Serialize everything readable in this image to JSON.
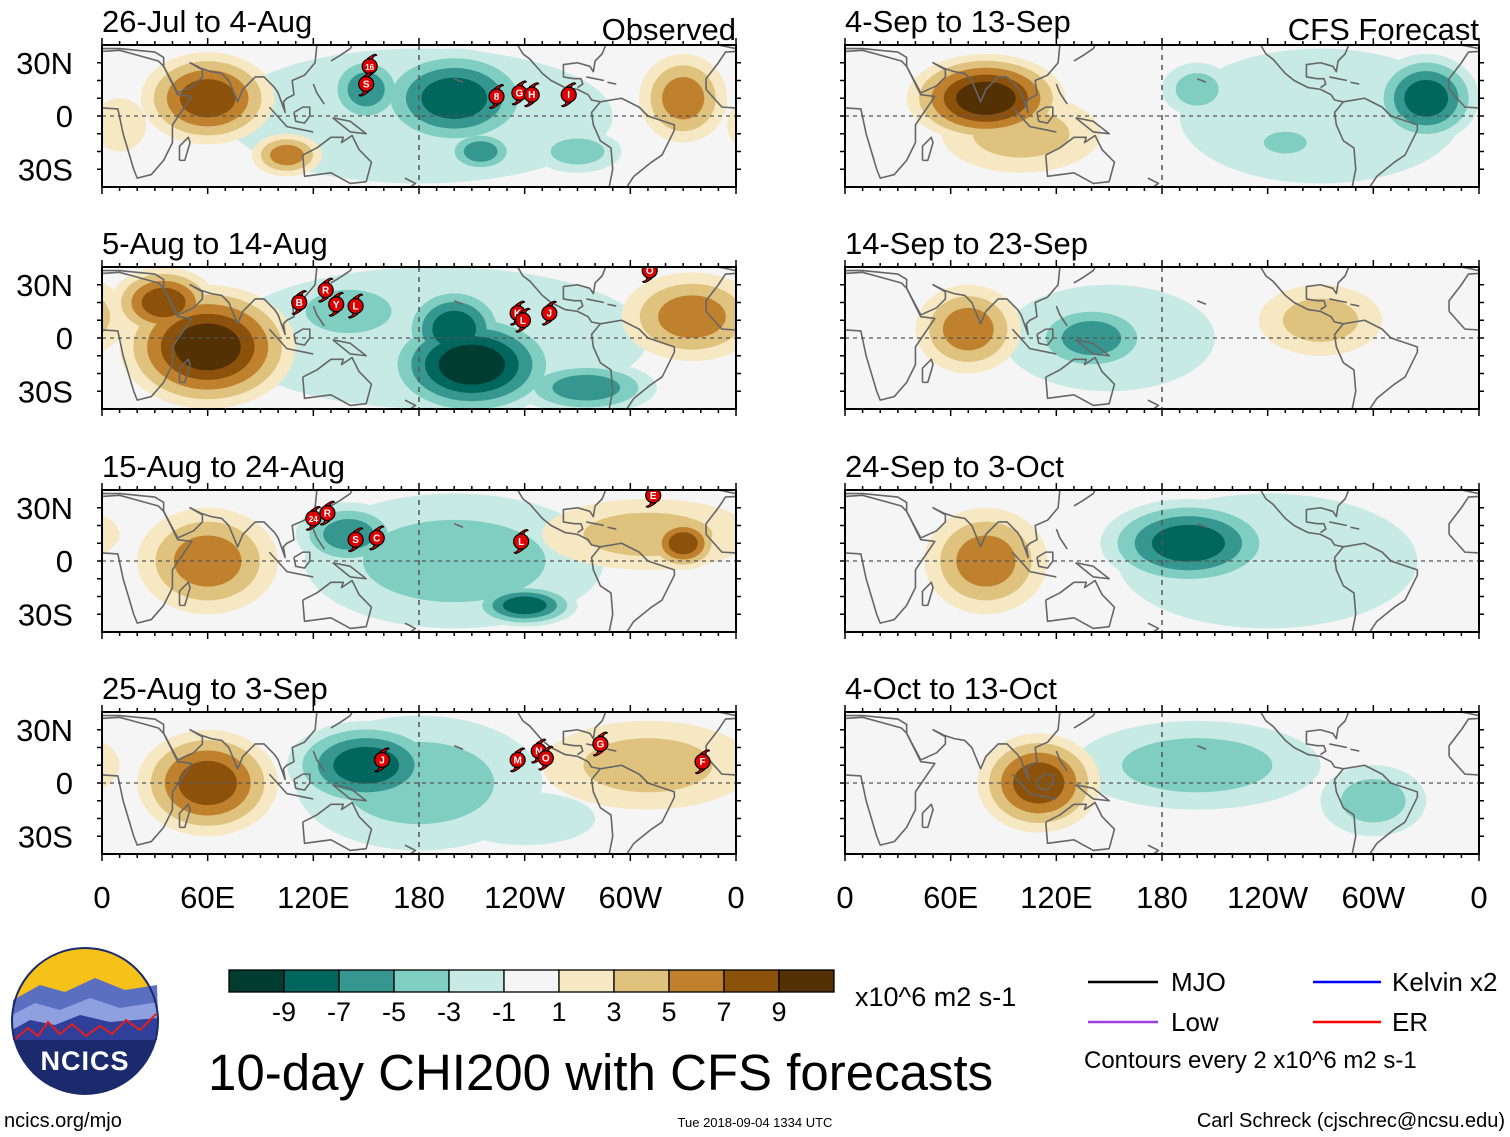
{
  "header": {
    "observed_label": "Observed",
    "forecast_label": "CFS Forecast"
  },
  "axes": {
    "lat_labels": [
      "30N",
      "0",
      "30S"
    ],
    "lon_labels": [
      "0",
      "60E",
      "120E",
      "180",
      "120W",
      "60W",
      "0"
    ]
  },
  "title": "10-day CHI200 with CFS forecasts",
  "colorbar": {
    "labels": [
      "-9",
      "-7",
      "-5",
      "-3",
      "-1",
      "1",
      "3",
      "5",
      "7",
      "9"
    ],
    "colors": [
      "#003c30",
      "#01665e",
      "#35978f",
      "#80cdc1",
      "#c7eae5",
      "#f5f5f5",
      "#f6e8c3",
      "#dfc27d",
      "#bf812d",
      "#8c510a",
      "#543005"
    ],
    "units": "x10^6 m2 s-1"
  },
  "legend": {
    "items": [
      {
        "label": "MJO",
        "color": "#000000"
      },
      {
        "label": "Kelvin x2",
        "color": "#0000ff"
      },
      {
        "label": "Low",
        "color": "#a040e0"
      },
      {
        "label": "ER",
        "color": "#ff0000"
      }
    ],
    "contour_note": "Contours every 2 x10^6 m2 s-1"
  },
  "logo": {
    "text": "NCICS"
  },
  "footer": {
    "url": "ncics.org/mjo",
    "timestamp": "Tue 2018-09-04 1334 UTC",
    "credit": "Carl Schreck (cjschrec@ncsu.edu)"
  },
  "chart_data": {
    "type": "heatmap",
    "variable": "10-day CHI200 anomaly",
    "units": "x10^6 m2 s-1",
    "lon_range": [
      0,
      360
    ],
    "lat_range": [
      -40,
      40
    ],
    "panels": [
      {
        "title": "26-Jul to 4-Aug",
        "kind": "observed",
        "features": [
          {
            "lon": 180,
            "lat": 0,
            "rx": 110,
            "ry": 38,
            "v": -2
          },
          {
            "lon": 200,
            "lat": 10,
            "rx": 45,
            "ry": 28,
            "v": -7
          },
          {
            "lon": 215,
            "lat": -20,
            "rx": 20,
            "ry": 12,
            "v": -6
          },
          {
            "lon": 150,
            "lat": 15,
            "rx": 22,
            "ry": 20,
            "v": -5
          },
          {
            "lon": 270,
            "lat": -20,
            "rx": 25,
            "ry": 12,
            "v": -4
          },
          {
            "lon": 60,
            "lat": 10,
            "rx": 38,
            "ry": 26,
            "v": 8
          },
          {
            "lon": 105,
            "lat": -22,
            "rx": 20,
            "ry": 12,
            "v": 6
          },
          {
            "lon": 330,
            "lat": 10,
            "rx": 25,
            "ry": 25,
            "v": 6
          },
          {
            "lon": 10,
            "lat": -5,
            "rx": 15,
            "ry": 15,
            "v": 2
          }
        ],
        "storms": [
          {
            "label": "16",
            "lon": 152,
            "lat": 28
          },
          {
            "label": "S",
            "lon": 150,
            "lat": 18
          },
          {
            "label": "8",
            "lon": 224,
            "lat": 11
          },
          {
            "label": "G",
            "lon": 237,
            "lat": 13
          },
          {
            "label": "H",
            "lon": 244,
            "lat": 12
          },
          {
            "label": "I",
            "lon": 265,
            "lat": 12
          }
        ]
      },
      {
        "title": "5-Aug to 14-Aug",
        "kind": "observed",
        "features": [
          {
            "lon": 190,
            "lat": 0,
            "rx": 120,
            "ry": 40,
            "v": -2
          },
          {
            "lon": 210,
            "lat": -15,
            "rx": 50,
            "ry": 30,
            "v": -10
          },
          {
            "lon": 200,
            "lat": 5,
            "rx": 30,
            "ry": 25,
            "v": -7
          },
          {
            "lon": 140,
            "lat": 15,
            "rx": 40,
            "ry": 20,
            "v": -3
          },
          {
            "lon": 275,
            "lat": -28,
            "rx": 40,
            "ry": 15,
            "v": -6
          },
          {
            "lon": 60,
            "lat": -5,
            "rx": 50,
            "ry": 35,
            "v": 10
          },
          {
            "lon": 35,
            "lat": 20,
            "rx": 30,
            "ry": 20,
            "v": 7
          },
          {
            "lon": 335,
            "lat": 12,
            "rx": 40,
            "ry": 25,
            "v": 5
          }
        ],
        "storms": [
          {
            "label": "B",
            "lon": 112,
            "lat": 20
          },
          {
            "label": "R",
            "lon": 127,
            "lat": 27
          },
          {
            "label": "Y",
            "lon": 133,
            "lat": 19
          },
          {
            "label": "L",
            "lon": 144,
            "lat": 18
          },
          {
            "label": "K",
            "lon": 236,
            "lat": 14
          },
          {
            "label": "L",
            "lon": 239,
            "lat": 10
          },
          {
            "label": "J",
            "lon": 254,
            "lat": 14
          },
          {
            "label": "O",
            "lon": 311,
            "lat": 38
          }
        ]
      },
      {
        "title": "15-Aug to 24-Aug",
        "kind": "observed",
        "features": [
          {
            "lon": 200,
            "lat": 0,
            "rx": 85,
            "ry": 38,
            "v": -3
          },
          {
            "lon": 140,
            "lat": 15,
            "rx": 30,
            "ry": 18,
            "v": -6
          },
          {
            "lon": 240,
            "lat": -25,
            "rx": 30,
            "ry": 12,
            "v": -7
          },
          {
            "lon": 60,
            "lat": 0,
            "rx": 40,
            "ry": 30,
            "v": 6
          },
          {
            "lon": 310,
            "lat": 15,
            "rx": 60,
            "ry": 20,
            "v": 4
          },
          {
            "lon": 330,
            "lat": 10,
            "rx": 20,
            "ry": 15,
            "v": 7
          }
        ],
        "storms": [
          {
            "label": "24",
            "lon": 120,
            "lat": 24
          },
          {
            "label": "R",
            "lon": 128,
            "lat": 27
          },
          {
            "label": "S",
            "lon": 144,
            "lat": 12
          },
          {
            "label": "C",
            "lon": 156,
            "lat": 13
          },
          {
            "label": "L",
            "lon": 238,
            "lat": 11
          },
          {
            "label": "E",
            "lon": 313,
            "lat": 37
          }
        ]
      },
      {
        "title": "25-Aug to 3-Sep",
        "kind": "observed",
        "features": [
          {
            "lon": 180,
            "lat": 0,
            "rx": 70,
            "ry": 38,
            "v": -3
          },
          {
            "lon": 150,
            "lat": 10,
            "rx": 45,
            "ry": 25,
            "v": -7
          },
          {
            "lon": 240,
            "lat": -20,
            "rx": 40,
            "ry": 15,
            "v": -2
          },
          {
            "lon": 60,
            "lat": 0,
            "rx": 40,
            "ry": 30,
            "v": 8
          },
          {
            "lon": 310,
            "lat": 10,
            "rx": 60,
            "ry": 25,
            "v": 4
          }
        ],
        "storms": [
          {
            "label": "J",
            "lon": 159,
            "lat": 13
          },
          {
            "label": "M",
            "lon": 236,
            "lat": 13
          },
          {
            "label": "N",
            "lon": 248,
            "lat": 18
          },
          {
            "label": "O",
            "lon": 252,
            "lat": 14
          },
          {
            "label": "G",
            "lon": 283,
            "lat": 22
          },
          {
            "label": "F",
            "lon": 341,
            "lat": 12
          }
        ]
      },
      {
        "title": "4-Sep to 13-Sep",
        "kind": "forecast",
        "features": [
          {
            "lon": 270,
            "lat": 0,
            "rx": 80,
            "ry": 38,
            "v": -2
          },
          {
            "lon": 330,
            "lat": 10,
            "rx": 30,
            "ry": 25,
            "v": -7
          },
          {
            "lon": 200,
            "lat": 15,
            "rx": 20,
            "ry": 15,
            "v": -3
          },
          {
            "lon": 250,
            "lat": -15,
            "rx": 20,
            "ry": 10,
            "v": -3
          },
          {
            "lon": 100,
            "lat": -10,
            "rx": 45,
            "ry": 22,
            "v": 3
          },
          {
            "lon": 80,
            "lat": 10,
            "rx": 45,
            "ry": 25,
            "v": 10
          }
        ],
        "storms": []
      },
      {
        "title": "14-Sep to 23-Sep",
        "kind": "forecast",
        "features": [
          {
            "lon": 150,
            "lat": 0,
            "rx": 60,
            "ry": 30,
            "v": -2
          },
          {
            "lon": 140,
            "lat": 0,
            "rx": 35,
            "ry": 20,
            "v": -5
          },
          {
            "lon": 70,
            "lat": 5,
            "rx": 30,
            "ry": 25,
            "v": 5
          },
          {
            "lon": 270,
            "lat": 10,
            "rx": 35,
            "ry": 20,
            "v": 4
          }
        ],
        "storms": []
      },
      {
        "title": "24-Sep to 3-Oct",
        "kind": "forecast",
        "features": [
          {
            "lon": 240,
            "lat": 0,
            "rx": 85,
            "ry": 38,
            "v": -2
          },
          {
            "lon": 195,
            "lat": 10,
            "rx": 50,
            "ry": 25,
            "v": -8
          },
          {
            "lon": 80,
            "lat": 0,
            "rx": 35,
            "ry": 30,
            "v": 6
          }
        ],
        "storms": []
      },
      {
        "title": "4-Oct to 13-Oct",
        "kind": "forecast",
        "features": [
          {
            "lon": 200,
            "lat": 10,
            "rx": 70,
            "ry": 25,
            "v": -3
          },
          {
            "lon": 300,
            "lat": -10,
            "rx": 30,
            "ry": 20,
            "v": -3
          },
          {
            "lon": 110,
            "lat": 0,
            "rx": 35,
            "ry": 28,
            "v": 8
          }
        ],
        "storms": []
      }
    ]
  }
}
